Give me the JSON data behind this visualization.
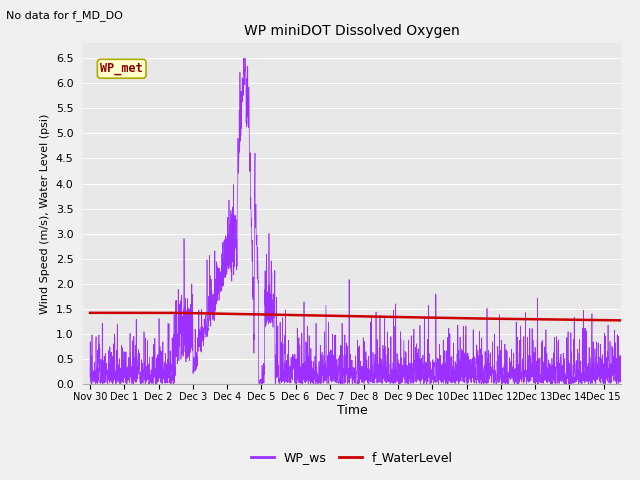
{
  "title": "WP miniDOT Dissolved Oxygen",
  "top_left_text": "No data for f_MD_DO",
  "ylabel": "Wind Speed (m/s), Water Level (psi)",
  "xlabel": "Time",
  "ylim": [
    0.0,
    6.5
  ],
  "yticks": [
    0.0,
    0.5,
    1.0,
    1.5,
    2.0,
    2.5,
    3.0,
    3.5,
    4.0,
    4.5,
    5.0,
    5.5,
    6.0,
    6.5
  ],
  "fig_bg_color": "#f0f0f0",
  "plot_bg_color": "#e8e8e8",
  "wp_ws_color": "#9B30FF",
  "f_waterlevel_color": "#CC0000",
  "legend_labels": [
    "WP_ws",
    "f_WaterLevel"
  ],
  "legend_colors": [
    "#9B30FF",
    "#CC0000"
  ],
  "inset_label": "WP_met",
  "inset_label_color": "#8B0000",
  "inset_bg_color": "#FFFFCC",
  "inset_border_color": "#AAAA00",
  "x_tick_labels": [
    "Nov 30",
    "Dec 1",
    "Dec 2",
    "Dec 3",
    "Dec 4",
    "Dec 5",
    "Dec 6",
    "Dec 7",
    "Dec 8",
    "Dec 9",
    "Dec 10",
    "Dec 11",
    "Dec 12",
    "Dec 13",
    "Dec 14",
    "Dec 15"
  ],
  "x_tick_positions": [
    0,
    1,
    2,
    3,
    4,
    5,
    6,
    7,
    8,
    9,
    10,
    11,
    12,
    13,
    14,
    15
  ]
}
